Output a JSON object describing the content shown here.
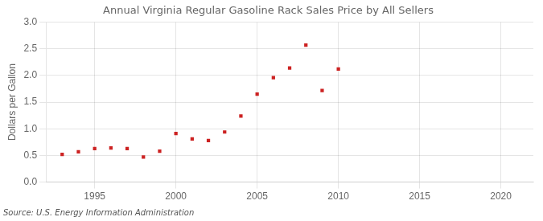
{
  "chart_data": {
    "type": "scatter",
    "title": "Annual Virginia Regular Gasoline Rack Sales Price by All Sellers",
    "ylabel": "Dollars per Gallon",
    "source": "Source: U.S. Energy Information Administration",
    "x": [
      1993,
      1994,
      1995,
      1996,
      1997,
      1998,
      1999,
      2000,
      2001,
      2002,
      2003,
      2004,
      2005,
      2006,
      2007,
      2008,
      2009,
      2010
    ],
    "values": [
      0.52,
      0.57,
      0.63,
      0.64,
      0.63,
      0.47,
      0.58,
      0.91,
      0.81,
      0.78,
      0.94,
      1.24,
      1.65,
      1.96,
      2.14,
      2.57,
      1.72,
      2.12
    ],
    "color": "#cc2222",
    "marker": "square",
    "xlim": [
      1992,
      2022
    ],
    "ylim": [
      0.0,
      3.0
    ],
    "xticks": [
      1995,
      2000,
      2005,
      2010,
      2015,
      2020
    ],
    "yticks": [
      {
        "value": 0,
        "label": "0.0"
      },
      0.5,
      {
        "value": 1,
        "label": "1.0"
      },
      1.5,
      {
        "value": 2,
        "label": "2.0"
      },
      2.5,
      {
        "value": 3,
        "label": "3.0"
      }
    ],
    "grid": true
  }
}
